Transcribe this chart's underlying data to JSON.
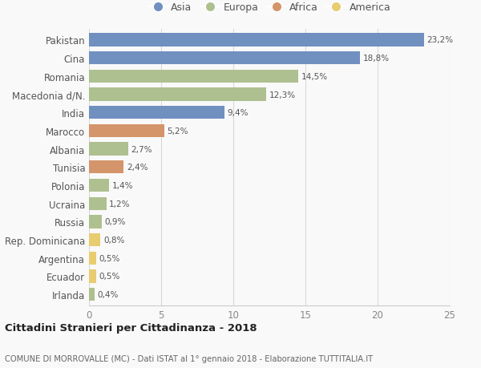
{
  "countries": [
    "Pakistan",
    "Cina",
    "Romania",
    "Macedonia d/N.",
    "India",
    "Marocco",
    "Albania",
    "Tunisia",
    "Polonia",
    "Ucraina",
    "Russia",
    "Rep. Dominicana",
    "Argentina",
    "Ecuador",
    "Irlanda"
  ],
  "values": [
    23.2,
    18.8,
    14.5,
    12.3,
    9.4,
    5.2,
    2.7,
    2.4,
    1.4,
    1.2,
    0.9,
    0.8,
    0.5,
    0.5,
    0.4
  ],
  "labels": [
    "23,2%",
    "18,8%",
    "14,5%",
    "12,3%",
    "9,4%",
    "5,2%",
    "2,7%",
    "2,4%",
    "1,4%",
    "1,2%",
    "0,9%",
    "0,8%",
    "0,5%",
    "0,5%",
    "0,4%"
  ],
  "continents": [
    "Asia",
    "Asia",
    "Europa",
    "Europa",
    "Asia",
    "Africa",
    "Europa",
    "Africa",
    "Europa",
    "Europa",
    "Europa",
    "America",
    "America",
    "America",
    "Europa"
  ],
  "colors": {
    "Asia": "#7090c0",
    "Europa": "#aec090",
    "Africa": "#d4956a",
    "America": "#e8cc70"
  },
  "legend_order": [
    "Asia",
    "Europa",
    "Africa",
    "America"
  ],
  "title_bold": "Cittadini Stranieri per Cittadinanza - 2018",
  "subtitle": "COMUNE DI MORROVALLE (MC) - Dati ISTAT al 1° gennaio 2018 - Elaborazione TUTTITALIA.IT",
  "xlim": [
    0,
    25
  ],
  "xticks": [
    0,
    5,
    10,
    15,
    20,
    25
  ],
  "background_color": "#f9f9f9",
  "bar_height": 0.72
}
